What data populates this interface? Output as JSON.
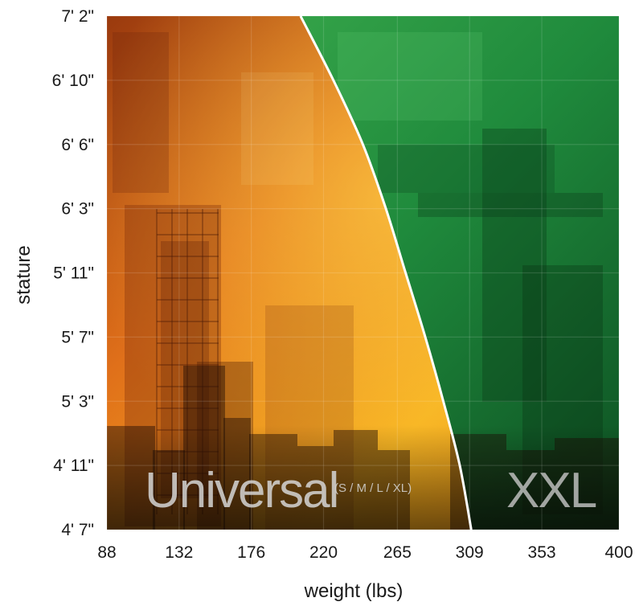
{
  "chart_data": {
    "type": "area",
    "xlabel": "weight (lbs)",
    "ylabel": "stature",
    "x_ticks": [
      "88",
      "132",
      "176",
      "220",
      "265",
      "309",
      "353",
      "400"
    ],
    "y_ticks": [
      "4' 7\"",
      "4' 11\"",
      "5' 3\"",
      "5' 7\"",
      "5' 11\"",
      "6' 3\"",
      "6' 6\"",
      "6' 10\"",
      "7' 2\""
    ],
    "xlim": [
      88,
      400
    ],
    "grid": true,
    "regions": [
      {
        "label": "Universal",
        "sublabel": "(S / M / L / XL)",
        "color": "#f39a1a"
      },
      {
        "label": "XXL",
        "sublabel": "",
        "color": "#2f9a45"
      }
    ],
    "boundary_curve": {
      "stature_tick_index": [
        8,
        7,
        6,
        5,
        4,
        3,
        2,
        1,
        0
      ],
      "weight_lbs": [
        206,
        226,
        244,
        258,
        270,
        282,
        293,
        303,
        310
      ]
    }
  }
}
